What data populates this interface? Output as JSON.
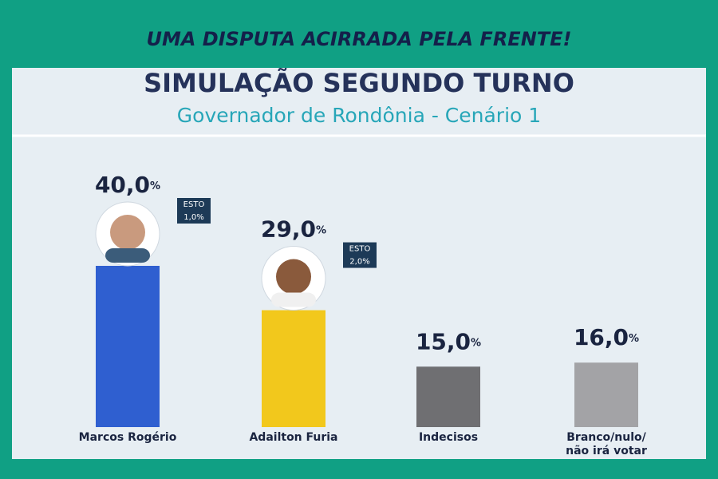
{
  "banner": "UMA DISPUTA ACIRRADA PELA FRENTE!",
  "chart_data": {
    "type": "bar",
    "title": "SIMULAÇÃO SEGUNDO TURNO",
    "subtitle": "Governador de Rondônia - Cenário 1",
    "categories": [
      "Marcos Rogério",
      "Adailton Furia",
      "Indecisos",
      "Branco/nulo/\nnão irá votar"
    ],
    "values": [
      40,
      29,
      15,
      16
    ],
    "value_labels": [
      "40,0%",
      "29,0%",
      "15,0%",
      "16,0%"
    ],
    "colors": [
      "#2f5fd0",
      "#f2c81c",
      "#6f6f72",
      "#a3a3a6"
    ],
    "annotations": [
      {
        "label": "ESTO",
        "text": "1,0%"
      },
      {
        "label": "ESTO",
        "text": "2,0%"
      }
    ]
  }
}
